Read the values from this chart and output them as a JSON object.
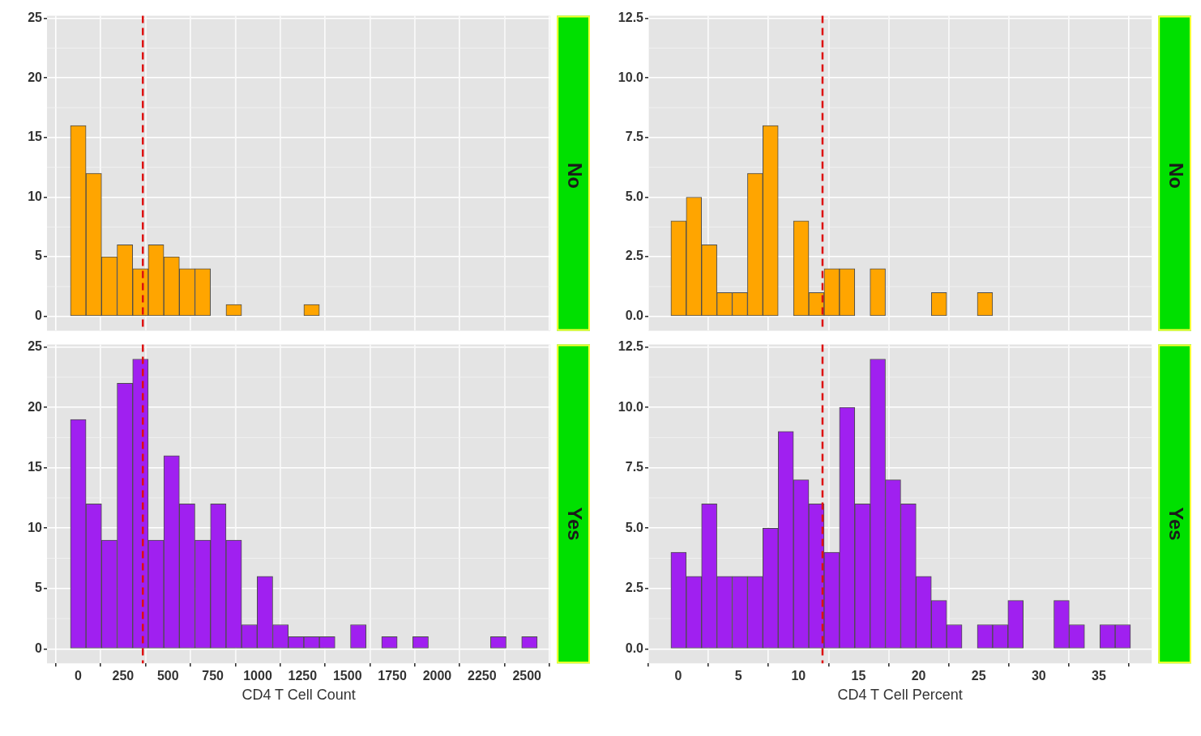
{
  "chart_data": [
    {
      "type": "histogram",
      "annotations": [
        "No"
      ],
      "color": "#ffa500",
      "tick_labels": "y",
      "grid": true,
      "bins": [
        -43.4,
        43.3,
        130,
        216.7,
        303.4,
        390.1,
        476.8,
        563.5,
        650.2,
        736.9,
        823.6,
        910.3,
        997,
        1083.7,
        1170.4,
        1257.1,
        1343.8,
        1430.5,
        1517.2,
        1603.9,
        1690.6,
        1777.3,
        1864,
        1950.7,
        2037.4,
        2124.1,
        2210.8,
        2297.5,
        2384.2,
        2470.9,
        2557.6
      ],
      "values": [
        16,
        12,
        5,
        6,
        4,
        6,
        5,
        4,
        4,
        0,
        1,
        0,
        0,
        0,
        0,
        1,
        0,
        0,
        0,
        0,
        0,
        0,
        0,
        0,
        0,
        0,
        0,
        0,
        0,
        0
      ],
      "xlim": [
        -174,
        2631
      ],
      "xticks": [
        0,
        250,
        500,
        750,
        1000,
        1250,
        1500,
        1750,
        2000,
        2250,
        2500
      ],
      "ylim": [
        -1.2,
        25.2
      ],
      "yticks": [
        0,
        5,
        10,
        15,
        20,
        25
      ],
      "ref_lines": [
        {
          "axis": "x",
          "value": 360,
          "color": "#dd1111",
          "line_style": "dashed"
        }
      ]
    },
    {
      "type": "histogram",
      "annotations": [
        "No"
      ],
      "color": "#ffa500",
      "tick_labels": "y",
      "grid": true,
      "bins": [
        -0.62,
        0.66,
        1.93,
        3.21,
        4.48,
        5.76,
        7.03,
        8.31,
        9.58,
        10.86,
        12.13,
        13.41,
        14.68,
        15.96,
        17.23,
        18.51,
        19.78,
        21.06,
        22.33,
        23.61,
        24.88,
        26.16,
        27.43,
        28.71,
        29.98,
        31.26,
        32.53,
        33.81,
        35.08,
        36.36,
        37.63
      ],
      "values": [
        4,
        5,
        3,
        1,
        1,
        6,
        8,
        0,
        4,
        1,
        2,
        2,
        0,
        2,
        0,
        0,
        0,
        1,
        0,
        0,
        1,
        0,
        0,
        0,
        0,
        0,
        0,
        0,
        0,
        0
      ],
      "xlim": [
        -2.5,
        39.4
      ],
      "xticks": [
        0,
        5,
        10,
        15,
        20,
        25,
        30,
        35
      ],
      "ylim": [
        -0.6,
        12.6
      ],
      "yticks": [
        {
          "value": 0,
          "label": "0.0"
        },
        2.5,
        {
          "value": 5,
          "label": "5.0"
        },
        7.5,
        {
          "value": 10,
          "label": "10.0"
        },
        12.5
      ],
      "ref_lines": [
        {
          "axis": "x",
          "value": 12,
          "color": "#dd1111",
          "line_style": "dashed"
        }
      ]
    },
    {
      "type": "histogram",
      "annotations": [
        "Yes"
      ],
      "xlabel": "CD4 T Cell Count",
      "color": "#a020f0",
      "grid": true,
      "bins": [
        -43.4,
        43.3,
        130,
        216.7,
        303.4,
        390.1,
        476.8,
        563.5,
        650.2,
        736.9,
        823.6,
        910.3,
        997,
        1083.7,
        1170.4,
        1257.1,
        1343.8,
        1430.5,
        1517.2,
        1603.9,
        1690.6,
        1777.3,
        1864,
        1950.7,
        2037.4,
        2124.1,
        2210.8,
        2297.5,
        2384.2,
        2470.9,
        2557.6
      ],
      "values": [
        19,
        12,
        9,
        22,
        24,
        9,
        16,
        12,
        9,
        12,
        9,
        2,
        6,
        2,
        1,
        1,
        1,
        0,
        2,
        0,
        1,
        0,
        1,
        0,
        0,
        0,
        0,
        1,
        0,
        1
      ],
      "xlim": [
        -174,
        2631
      ],
      "xticks": [
        0,
        250,
        500,
        750,
        1000,
        1250,
        1500,
        1750,
        2000,
        2250,
        2500
      ],
      "ylim": [
        -1.2,
        25.2
      ],
      "yticks": [
        0,
        5,
        10,
        15,
        20,
        25
      ],
      "ref_lines": [
        {
          "axis": "x",
          "value": 360,
          "color": "#dd1111",
          "line_style": "dashed"
        }
      ]
    },
    {
      "type": "histogram",
      "annotations": [
        "Yes"
      ],
      "xlabel": "CD4 T Cell Percent",
      "color": "#a020f0",
      "grid": true,
      "bins": [
        -0.62,
        0.66,
        1.93,
        3.21,
        4.48,
        5.76,
        7.03,
        8.31,
        9.58,
        10.86,
        12.13,
        13.41,
        14.68,
        15.96,
        17.23,
        18.51,
        19.78,
        21.06,
        22.33,
        23.61,
        24.88,
        26.16,
        27.43,
        28.71,
        29.98,
        31.26,
        32.53,
        33.81,
        35.08,
        36.36,
        37.63
      ],
      "values": [
        4,
        3,
        6,
        3,
        3,
        3,
        5,
        9,
        7,
        6,
        4,
        10,
        6,
        12,
        7,
        6,
        3,
        2,
        1,
        0,
        1,
        1,
        2,
        0,
        0,
        2,
        1,
        0,
        1,
        1
      ],
      "xlim": [
        -2.5,
        39.4
      ],
      "xticks": [
        0,
        5,
        10,
        15,
        20,
        25,
        30,
        35
      ],
      "ylim": [
        -0.6,
        12.6
      ],
      "yticks": [
        {
          "value": 0,
          "label": "0.0"
        },
        2.5,
        {
          "value": 5,
          "label": "5.0"
        },
        7.5,
        {
          "value": 10,
          "label": "10.0"
        },
        12.5
      ],
      "ref_lines": [
        {
          "axis": "x",
          "value": 12,
          "color": "#dd1111",
          "line_style": "dashed"
        }
      ]
    }
  ]
}
